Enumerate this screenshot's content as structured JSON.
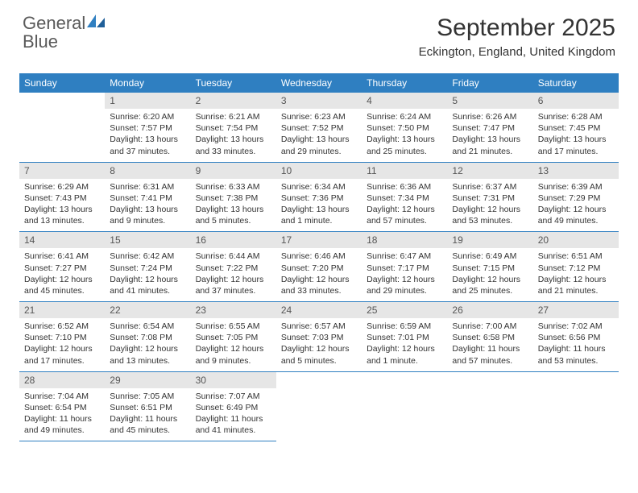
{
  "brand": {
    "part1": "General",
    "part2": "Blue"
  },
  "title": "September 2025",
  "location": "Eckington, England, United Kingdom",
  "colors": {
    "header_bg": "#2f7fc1",
    "header_text": "#ffffff",
    "daynum_bg": "#e6e6e6",
    "border": "#2f7fc1",
    "text": "#333333",
    "logo_gray": "#5a5a5a",
    "logo_blue": "#2f7fc1"
  },
  "weekday_labels": [
    "Sunday",
    "Monday",
    "Tuesday",
    "Wednesday",
    "Thursday",
    "Friday",
    "Saturday"
  ],
  "weeks": [
    [
      {
        "n": "",
        "sr": "",
        "ss": "",
        "dl": ""
      },
      {
        "n": "1",
        "sr": "Sunrise: 6:20 AM",
        "ss": "Sunset: 7:57 PM",
        "dl": "Daylight: 13 hours and 37 minutes."
      },
      {
        "n": "2",
        "sr": "Sunrise: 6:21 AM",
        "ss": "Sunset: 7:54 PM",
        "dl": "Daylight: 13 hours and 33 minutes."
      },
      {
        "n": "3",
        "sr": "Sunrise: 6:23 AM",
        "ss": "Sunset: 7:52 PM",
        "dl": "Daylight: 13 hours and 29 minutes."
      },
      {
        "n": "4",
        "sr": "Sunrise: 6:24 AM",
        "ss": "Sunset: 7:50 PM",
        "dl": "Daylight: 13 hours and 25 minutes."
      },
      {
        "n": "5",
        "sr": "Sunrise: 6:26 AM",
        "ss": "Sunset: 7:47 PM",
        "dl": "Daylight: 13 hours and 21 minutes."
      },
      {
        "n": "6",
        "sr": "Sunrise: 6:28 AM",
        "ss": "Sunset: 7:45 PM",
        "dl": "Daylight: 13 hours and 17 minutes."
      }
    ],
    [
      {
        "n": "7",
        "sr": "Sunrise: 6:29 AM",
        "ss": "Sunset: 7:43 PM",
        "dl": "Daylight: 13 hours and 13 minutes."
      },
      {
        "n": "8",
        "sr": "Sunrise: 6:31 AM",
        "ss": "Sunset: 7:41 PM",
        "dl": "Daylight: 13 hours and 9 minutes."
      },
      {
        "n": "9",
        "sr": "Sunrise: 6:33 AM",
        "ss": "Sunset: 7:38 PM",
        "dl": "Daylight: 13 hours and 5 minutes."
      },
      {
        "n": "10",
        "sr": "Sunrise: 6:34 AM",
        "ss": "Sunset: 7:36 PM",
        "dl": "Daylight: 13 hours and 1 minute."
      },
      {
        "n": "11",
        "sr": "Sunrise: 6:36 AM",
        "ss": "Sunset: 7:34 PM",
        "dl": "Daylight: 12 hours and 57 minutes."
      },
      {
        "n": "12",
        "sr": "Sunrise: 6:37 AM",
        "ss": "Sunset: 7:31 PM",
        "dl": "Daylight: 12 hours and 53 minutes."
      },
      {
        "n": "13",
        "sr": "Sunrise: 6:39 AM",
        "ss": "Sunset: 7:29 PM",
        "dl": "Daylight: 12 hours and 49 minutes."
      }
    ],
    [
      {
        "n": "14",
        "sr": "Sunrise: 6:41 AM",
        "ss": "Sunset: 7:27 PM",
        "dl": "Daylight: 12 hours and 45 minutes."
      },
      {
        "n": "15",
        "sr": "Sunrise: 6:42 AM",
        "ss": "Sunset: 7:24 PM",
        "dl": "Daylight: 12 hours and 41 minutes."
      },
      {
        "n": "16",
        "sr": "Sunrise: 6:44 AM",
        "ss": "Sunset: 7:22 PM",
        "dl": "Daylight: 12 hours and 37 minutes."
      },
      {
        "n": "17",
        "sr": "Sunrise: 6:46 AM",
        "ss": "Sunset: 7:20 PM",
        "dl": "Daylight: 12 hours and 33 minutes."
      },
      {
        "n": "18",
        "sr": "Sunrise: 6:47 AM",
        "ss": "Sunset: 7:17 PM",
        "dl": "Daylight: 12 hours and 29 minutes."
      },
      {
        "n": "19",
        "sr": "Sunrise: 6:49 AM",
        "ss": "Sunset: 7:15 PM",
        "dl": "Daylight: 12 hours and 25 minutes."
      },
      {
        "n": "20",
        "sr": "Sunrise: 6:51 AM",
        "ss": "Sunset: 7:12 PM",
        "dl": "Daylight: 12 hours and 21 minutes."
      }
    ],
    [
      {
        "n": "21",
        "sr": "Sunrise: 6:52 AM",
        "ss": "Sunset: 7:10 PM",
        "dl": "Daylight: 12 hours and 17 minutes."
      },
      {
        "n": "22",
        "sr": "Sunrise: 6:54 AM",
        "ss": "Sunset: 7:08 PM",
        "dl": "Daylight: 12 hours and 13 minutes."
      },
      {
        "n": "23",
        "sr": "Sunrise: 6:55 AM",
        "ss": "Sunset: 7:05 PM",
        "dl": "Daylight: 12 hours and 9 minutes."
      },
      {
        "n": "24",
        "sr": "Sunrise: 6:57 AM",
        "ss": "Sunset: 7:03 PM",
        "dl": "Daylight: 12 hours and 5 minutes."
      },
      {
        "n": "25",
        "sr": "Sunrise: 6:59 AM",
        "ss": "Sunset: 7:01 PM",
        "dl": "Daylight: 12 hours and 1 minute."
      },
      {
        "n": "26",
        "sr": "Sunrise: 7:00 AM",
        "ss": "Sunset: 6:58 PM",
        "dl": "Daylight: 11 hours and 57 minutes."
      },
      {
        "n": "27",
        "sr": "Sunrise: 7:02 AM",
        "ss": "Sunset: 6:56 PM",
        "dl": "Daylight: 11 hours and 53 minutes."
      }
    ],
    [
      {
        "n": "28",
        "sr": "Sunrise: 7:04 AM",
        "ss": "Sunset: 6:54 PM",
        "dl": "Daylight: 11 hours and 49 minutes."
      },
      {
        "n": "29",
        "sr": "Sunrise: 7:05 AM",
        "ss": "Sunset: 6:51 PM",
        "dl": "Daylight: 11 hours and 45 minutes."
      },
      {
        "n": "30",
        "sr": "Sunrise: 7:07 AM",
        "ss": "Sunset: 6:49 PM",
        "dl": "Daylight: 11 hours and 41 minutes."
      },
      {
        "n": "",
        "sr": "",
        "ss": "",
        "dl": ""
      },
      {
        "n": "",
        "sr": "",
        "ss": "",
        "dl": ""
      },
      {
        "n": "",
        "sr": "",
        "ss": "",
        "dl": ""
      },
      {
        "n": "",
        "sr": "",
        "ss": "",
        "dl": ""
      }
    ]
  ]
}
